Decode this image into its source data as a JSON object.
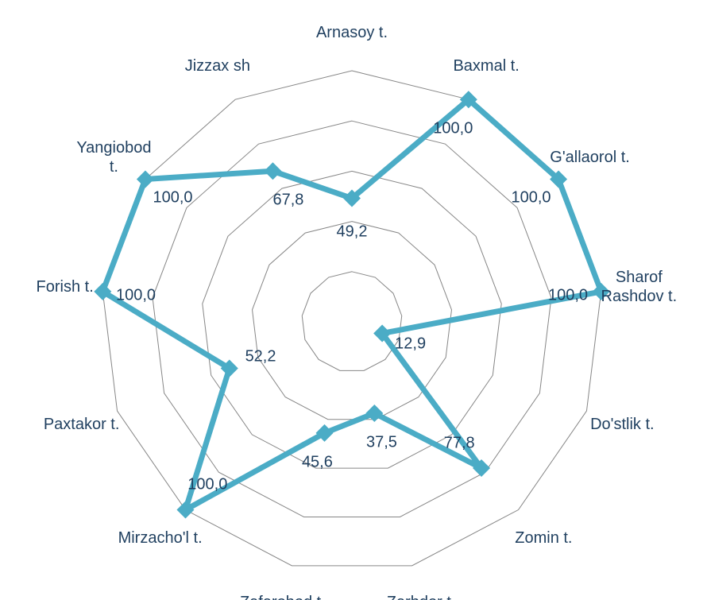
{
  "chart_data": {
    "type": "radar",
    "categories": [
      "Arnasoy t.",
      "Baxmal t.",
      "G'allaorol t.",
      "Sharof Rashdov t.",
      "Do'stlik t.",
      "Zomin t.",
      "Zarbdor t.",
      "Zafarobod t.",
      "Mirzacho'l t.",
      "Paxtakor t.",
      "Forish t.",
      "Yangiobod t.",
      "Jizzax sh"
    ],
    "values": [
      49.2,
      100,
      100,
      100,
      12.9,
      77.8,
      37.5,
      45.6,
      100,
      52.2,
      100,
      100,
      67.8
    ],
    "value_labels": [
      "49,2",
      "100,0",
      "100,0",
      "100,0",
      "12,9",
      "77,8",
      "37,5",
      "45,6",
      "100,0",
      "52,2",
      "100,0",
      "100,0",
      "67,8"
    ],
    "color": "#4bacc6",
    "rlim": [
      0,
      100
    ],
    "rticks": [
      0,
      20,
      40,
      60,
      80,
      100
    ],
    "grid": true
  }
}
